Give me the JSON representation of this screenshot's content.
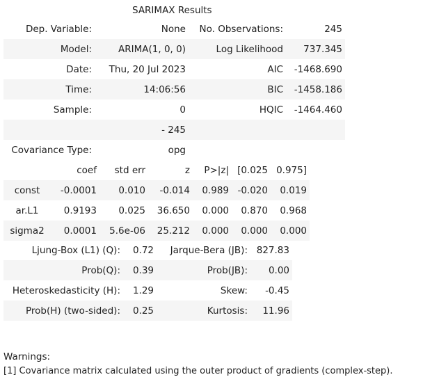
{
  "caption": "SARIMAX Results",
  "summary_rows": [
    {
      "l1": "Dep. Variable:",
      "v1": "None",
      "l2": "No. Observations:",
      "v2": "245"
    },
    {
      "l1": "Model:",
      "v1": "ARIMA(1, 0, 0)",
      "l2": "Log Likelihood",
      "v2": "737.345"
    },
    {
      "l1": "Date:",
      "v1": "Thu, 20 Jul 2023",
      "l2": "AIC",
      "v2": "-1468.690"
    },
    {
      "l1": "Time:",
      "v1": "14:06:56",
      "l2": "BIC",
      "v2": "-1458.186"
    },
    {
      "l1": "Sample:",
      "v1": "0",
      "l2": "HQIC",
      "v2": "-1464.460"
    },
    {
      "l1": "",
      "v1": "- 245",
      "l2": "",
      "v2": ""
    },
    {
      "l1": "Covariance Type:",
      "v1": "opg",
      "l2": "",
      "v2": ""
    }
  ],
  "coef_headers": [
    "",
    "coef",
    "std err",
    "z",
    "P>|z|",
    "[0.025",
    "0.975]"
  ],
  "coef_rows": [
    [
      "const",
      "-0.0001",
      "0.010",
      "-0.014",
      "0.989",
      "-0.020",
      "0.019"
    ],
    [
      "ar.L1",
      "0.9193",
      "0.025",
      "36.650",
      "0.000",
      "0.870",
      "0.968"
    ],
    [
      "sigma2",
      "0.0001",
      "5.6e-06",
      "25.212",
      "0.000",
      "0.000",
      "0.000"
    ]
  ],
  "diag_rows": [
    {
      "l1": "Ljung-Box (L1) (Q):",
      "v1": "0.72",
      "l2": "Jarque-Bera (JB):",
      "v2": "827.83"
    },
    {
      "l1": "Prob(Q):",
      "v1": "0.39",
      "l2": "Prob(JB):",
      "v2": "0.00"
    },
    {
      "l1": "Heteroskedasticity (H):",
      "v1": "1.29",
      "l2": "Skew:",
      "v2": "-0.45"
    },
    {
      "l1": "Prob(H) (two-sided):",
      "v1": "0.25",
      "l2": "Kurtosis:",
      "v2": "11.96"
    }
  ],
  "warnings_title": "Warnings:",
  "warnings": [
    "[1] Covariance matrix calculated using the outer product of gradients (complex-step)."
  ]
}
